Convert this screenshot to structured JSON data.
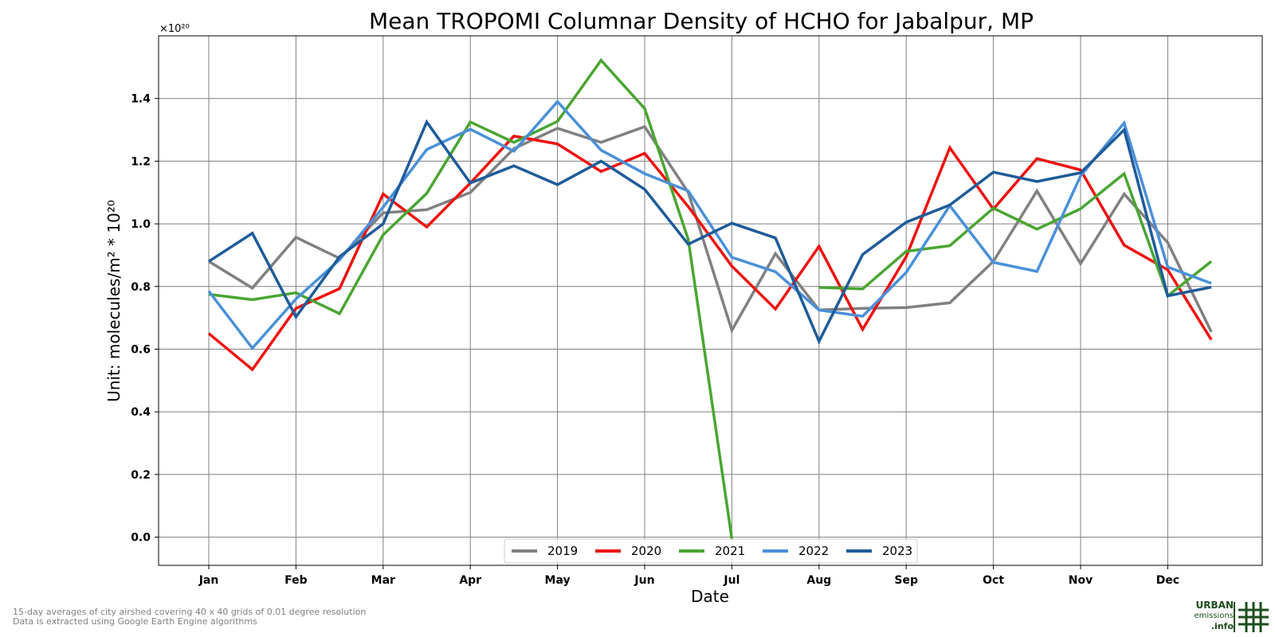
{
  "footnotes": [
    "15-day averages of city airshed covering 40 x 40 grids of 0.01 degree resolution",
    "Data is extracted using Google Earth Engine algorithms"
  ],
  "logo": {
    "line1": "URBAN",
    "line2": "emissions",
    "line3": ".info",
    "color": "#1e4d1e"
  },
  "chart_data": {
    "type": "line",
    "title": "Mean TROPOMI Columnar Density of HCHO for Jabalpur, MP",
    "xlabel": "Date",
    "ylabel": "Unit: molecules/m² * 10²⁰",
    "y_offset_label": "×10²⁰",
    "ylim": [
      -0.09,
      1.6
    ],
    "yticks": [
      "0.0",
      "0.2",
      "0.4",
      "0.6",
      "0.8",
      "1.0",
      "1.2",
      "1.4"
    ],
    "x_tick_labels": [
      "Jan",
      "Feb",
      "Mar",
      "Apr",
      "May",
      "Jun",
      "Jul",
      "Aug",
      "Sep",
      "Oct",
      "Nov",
      "Dec"
    ],
    "grid": true,
    "legend_position": "bottom-center",
    "series": [
      {
        "name": "2019",
        "color": "#808080",
        "values": [
          0.88,
          0.795,
          0.957,
          0.89,
          1.035,
          1.045,
          1.1,
          1.24,
          1.305,
          1.26,
          1.31,
          1.1,
          0.66,
          0.905,
          0.725,
          0.73,
          0.733,
          0.748,
          0.88,
          1.105,
          0.873,
          1.095,
          0.94,
          0.655
        ]
      },
      {
        "name": "2020",
        "color": "#ee1111",
        "values": [
          0.65,
          0.535,
          0.73,
          0.793,
          1.095,
          0.99,
          1.13,
          1.28,
          1.255,
          1.167,
          1.225,
          1.055,
          0.865,
          0.728,
          0.928,
          0.663,
          0.895,
          1.243,
          1.047,
          1.208,
          1.172,
          0.932,
          0.853,
          0.63
        ]
      },
      {
        "name": "2021",
        "color": "#4aa532",
        "values": [
          0.775,
          0.758,
          0.78,
          0.713,
          0.965,
          1.097,
          1.325,
          1.26,
          1.327,
          1.522,
          1.368,
          0.95,
          -0.005,
          null,
          0.797,
          0.792,
          0.912,
          0.93,
          1.05,
          0.983,
          1.048,
          1.16,
          0.77,
          0.88
        ]
      },
      {
        "name": "2022",
        "color": "#4a90d9",
        "values": [
          0.785,
          0.603,
          0.76,
          0.885,
          1.053,
          1.237,
          1.302,
          1.232,
          1.39,
          1.235,
          1.16,
          1.105,
          0.893,
          0.847,
          0.725,
          0.705,
          0.845,
          1.058,
          0.877,
          0.848,
          1.153,
          1.322,
          0.862,
          0.81
        ]
      },
      {
        "name": "2023",
        "color": "#1f5b99",
        "values": [
          0.88,
          0.97,
          0.703,
          0.895,
          1.0,
          1.325,
          1.13,
          1.185,
          1.125,
          1.2,
          1.11,
          0.935,
          1.002,
          0.955,
          0.625,
          0.902,
          1.005,
          1.06,
          1.165,
          1.135,
          1.163,
          1.3,
          0.77,
          0.798
        ]
      }
    ]
  }
}
